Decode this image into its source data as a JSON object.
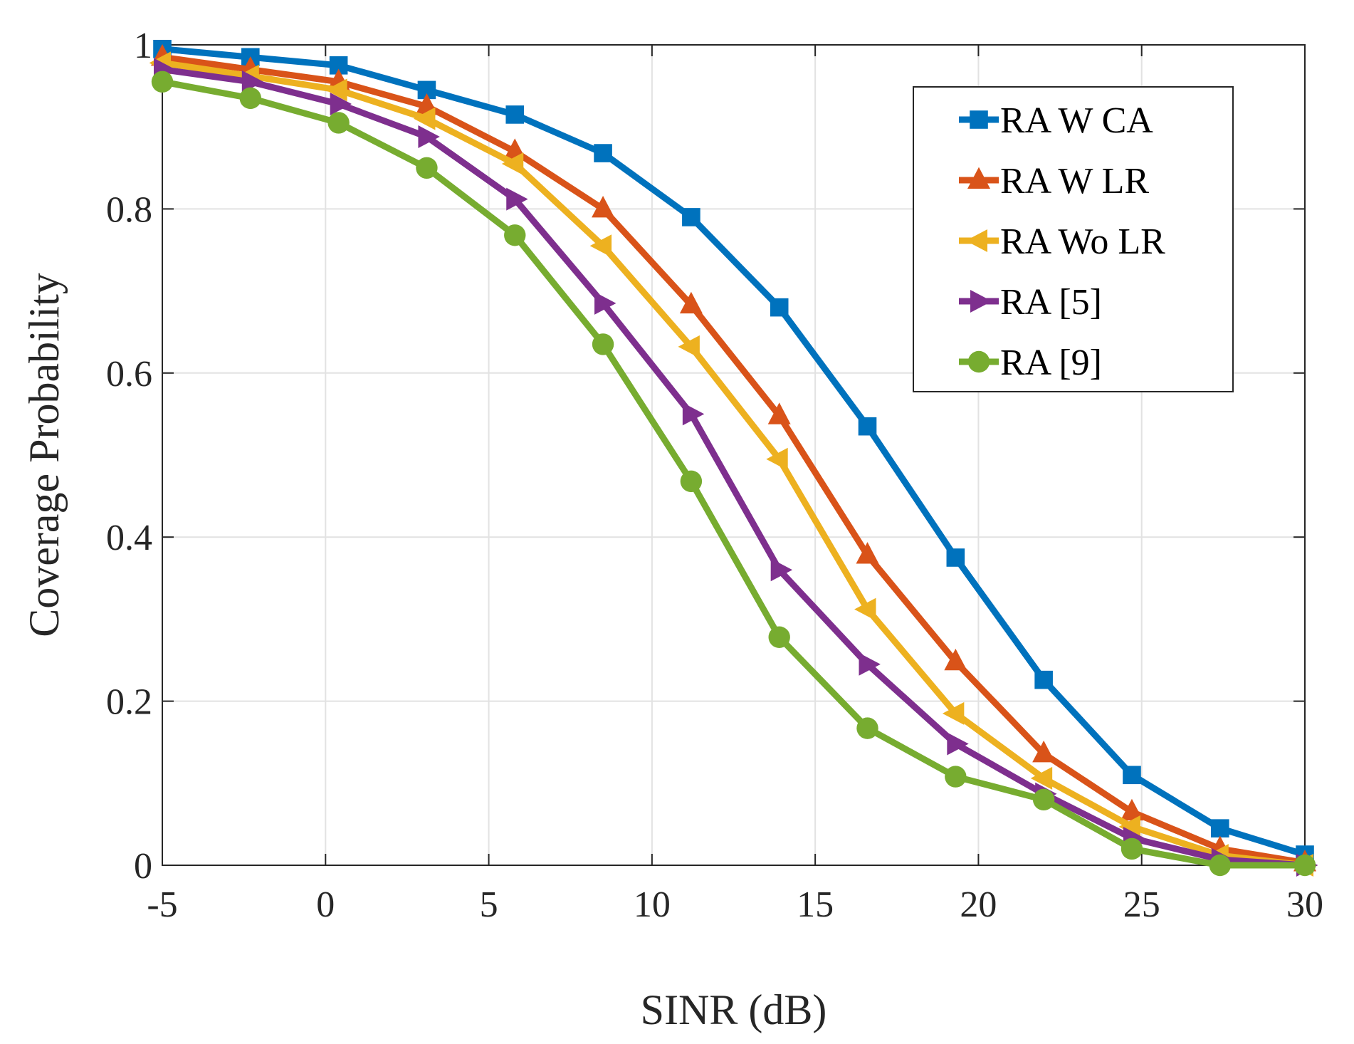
{
  "chart_data": {
    "type": "line",
    "xlabel": "SINR (dB)",
    "ylabel": "Coverage Probability",
    "xlim": [
      -5,
      30
    ],
    "ylim": [
      0,
      1
    ],
    "xticks": [
      -5,
      0,
      5,
      10,
      15,
      20,
      25,
      30
    ],
    "yticks": [
      0,
      0.2,
      0.4,
      0.6,
      0.8,
      1
    ],
    "ytick_labels": [
      "0",
      "0.2",
      "0.4",
      "0.6",
      "0.8",
      "1"
    ],
    "grid": true,
    "legend_position": "top-right",
    "x": [
      -5,
      -2.3,
      0.4,
      3.1,
      5.8,
      8.5,
      11.2,
      13.9,
      16.6,
      19.3,
      22,
      24.7,
      27.4,
      30
    ],
    "series": [
      {
        "name": "RA W CA",
        "color": "#0072BD",
        "marker": "square",
        "values": [
          0.995,
          0.985,
          0.975,
          0.945,
          0.915,
          0.868,
          0.79,
          0.68,
          0.535,
          0.375,
          0.226,
          0.11,
          0.045,
          0.013
        ]
      },
      {
        "name": "RA W LR",
        "color": "#D95319",
        "marker": "triangle-up",
        "values": [
          0.985,
          0.97,
          0.955,
          0.925,
          0.87,
          0.8,
          0.683,
          0.548,
          0.378,
          0.248,
          0.136,
          0.065,
          0.02,
          0.003
        ]
      },
      {
        "name": "RA Wo LR",
        "color": "#EDB120",
        "marker": "triangle-left",
        "values": [
          0.978,
          0.962,
          0.945,
          0.91,
          0.855,
          0.755,
          0.632,
          0.495,
          0.312,
          0.185,
          0.106,
          0.047,
          0.012,
          0.0
        ]
      },
      {
        "name": "RA [5]",
        "color": "#7E2F8E",
        "marker": "triangle-right",
        "values": [
          0.97,
          0.955,
          0.928,
          0.888,
          0.812,
          0.685,
          0.55,
          0.36,
          0.245,
          0.148,
          0.087,
          0.033,
          0.007,
          0.0
        ]
      },
      {
        "name": "RA [9]",
        "color": "#77AC30",
        "marker": "circle",
        "values": [
          0.955,
          0.935,
          0.905,
          0.85,
          0.768,
          0.635,
          0.468,
          0.278,
          0.167,
          0.108,
          0.08,
          0.02,
          0.0,
          0.0
        ]
      }
    ]
  }
}
